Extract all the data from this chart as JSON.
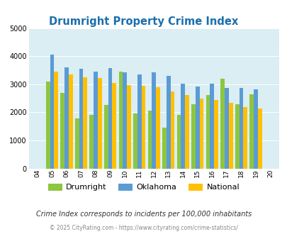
{
  "title": "Drumright Property Crime Index",
  "years": [
    "04",
    "05",
    "06",
    "07",
    "08",
    "09",
    "10",
    "11",
    "12",
    "13",
    "14",
    "15",
    "16",
    "17",
    "18",
    "19",
    "20"
  ],
  "drumright": [
    null,
    3100,
    2700,
    1780,
    1900,
    2270,
    3450,
    1950,
    2060,
    1450,
    1920,
    2280,
    2620,
    3200,
    2280,
    2630,
    null
  ],
  "oklahoma": [
    null,
    4050,
    3600,
    3540,
    3450,
    3580,
    3420,
    3360,
    3420,
    3300,
    3020,
    2920,
    3020,
    2880,
    2870,
    2830,
    null
  ],
  "national": [
    null,
    3450,
    3360,
    3250,
    3220,
    3050,
    2960,
    2950,
    2890,
    2750,
    2610,
    2490,
    2450,
    2350,
    2190,
    2130,
    null
  ],
  "drumright_color": "#8dc63f",
  "oklahoma_color": "#5b9bd5",
  "national_color": "#ffc000",
  "bg_color": "#daeef3",
  "plot_bg": "#daeef3",
  "ylim": [
    0,
    5000
  ],
  "yticks": [
    0,
    1000,
    2000,
    3000,
    4000,
    5000
  ],
  "legend_labels": [
    "Drumright",
    "Oklahoma",
    "National"
  ],
  "footnote1": "Crime Index corresponds to incidents per 100,000 inhabitants",
  "footnote2": "© 2025 CityRating.com - https://www.cityrating.com/crime-statistics/"
}
